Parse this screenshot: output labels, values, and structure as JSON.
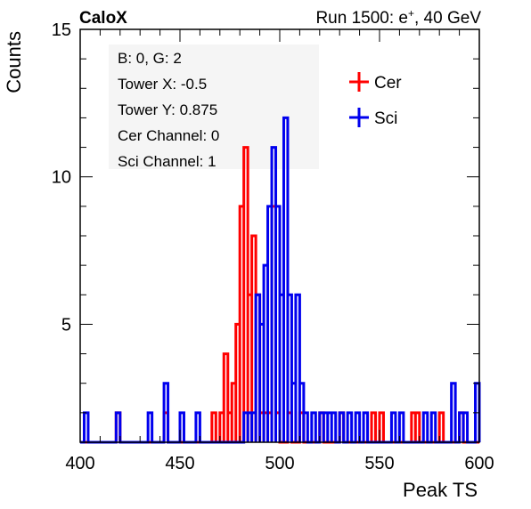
{
  "header": {
    "left": "CaloX",
    "right_prefix": "Run 1500: e",
    "right_sup": "+",
    "right_suffix": ", 40 GeV"
  },
  "info": {
    "lines": [
      "B: 0, G: 2",
      "Tower X: -0.5",
      "Tower Y: 0.875",
      "Cer Channel: 0",
      "Sci Channel: 1"
    ]
  },
  "colors": {
    "cer": "#ff0000",
    "sci": "#0000ee",
    "axis": "#000000",
    "info_bg": "#f5f5f5"
  },
  "chart_data": {
    "type": "histogram",
    "xlabel": "Peak TS",
    "ylabel": "Counts",
    "xlim": [
      400,
      600
    ],
    "ylim": [
      1,
      15
    ],
    "bin_width": 2,
    "xticks": [
      400,
      450,
      500,
      550,
      600
    ],
    "yticks": [
      5,
      10,
      15
    ],
    "legend": {
      "position": "top-right",
      "entries": [
        "Cer",
        "Sci"
      ]
    },
    "series": [
      {
        "name": "Cer",
        "color": "#ff0000",
        "bins": [
          {
            "x": 418,
            "y": 2
          },
          {
            "x": 442,
            "y": 2
          },
          {
            "x": 466,
            "y": 2
          },
          {
            "x": 470,
            "y": 2
          },
          {
            "x": 472,
            "y": 4
          },
          {
            "x": 474,
            "y": 2
          },
          {
            "x": 476,
            "y": 3
          },
          {
            "x": 478,
            "y": 5
          },
          {
            "x": 480,
            "y": 9
          },
          {
            "x": 482,
            "y": 11
          },
          {
            "x": 484,
            "y": 6
          },
          {
            "x": 486,
            "y": 8
          },
          {
            "x": 488,
            "y": 6
          },
          {
            "x": 490,
            "y": 2
          },
          {
            "x": 492,
            "y": 2
          },
          {
            "x": 494,
            "y": 2
          },
          {
            "x": 496,
            "y": 9
          },
          {
            "x": 498,
            "y": 2
          },
          {
            "x": 504,
            "y": 2
          },
          {
            "x": 510,
            "y": 2
          },
          {
            "x": 520,
            "y": 2
          },
          {
            "x": 530,
            "y": 2
          },
          {
            "x": 546,
            "y": 2
          },
          {
            "x": 550,
            "y": 2
          },
          {
            "x": 566,
            "y": 2
          },
          {
            "x": 568,
            "y": 2
          },
          {
            "x": 580,
            "y": 2
          },
          {
            "x": 590,
            "y": 2
          }
        ]
      },
      {
        "name": "Sci",
        "color": "#0000ee",
        "bins": [
          {
            "x": 402,
            "y": 2
          },
          {
            "x": 418,
            "y": 2
          },
          {
            "x": 434,
            "y": 2
          },
          {
            "x": 442,
            "y": 3
          },
          {
            "x": 450,
            "y": 2
          },
          {
            "x": 458,
            "y": 2
          },
          {
            "x": 482,
            "y": 2
          },
          {
            "x": 484,
            "y": 2
          },
          {
            "x": 486,
            "y": 2
          },
          {
            "x": 488,
            "y": 6
          },
          {
            "x": 490,
            "y": 5
          },
          {
            "x": 492,
            "y": 7
          },
          {
            "x": 494,
            "y": 9
          },
          {
            "x": 496,
            "y": 11
          },
          {
            "x": 498,
            "y": 9
          },
          {
            "x": 500,
            "y": 6
          },
          {
            "x": 502,
            "y": 12
          },
          {
            "x": 504,
            "y": 6
          },
          {
            "x": 506,
            "y": 3
          },
          {
            "x": 508,
            "y": 6
          },
          {
            "x": 510,
            "y": 3
          },
          {
            "x": 512,
            "y": 2
          },
          {
            "x": 516,
            "y": 2
          },
          {
            "x": 520,
            "y": 2
          },
          {
            "x": 522,
            "y": 2
          },
          {
            "x": 524,
            "y": 2
          },
          {
            "x": 526,
            "y": 2
          },
          {
            "x": 530,
            "y": 2
          },
          {
            "x": 534,
            "y": 2
          },
          {
            "x": 538,
            "y": 2
          },
          {
            "x": 542,
            "y": 2
          },
          {
            "x": 556,
            "y": 2
          },
          {
            "x": 560,
            "y": 2
          },
          {
            "x": 572,
            "y": 2
          },
          {
            "x": 576,
            "y": 2
          },
          {
            "x": 586,
            "y": 3
          },
          {
            "x": 590,
            "y": 2
          },
          {
            "x": 592,
            "y": 2
          },
          {
            "x": 598,
            "y": 3
          }
        ]
      }
    ]
  }
}
